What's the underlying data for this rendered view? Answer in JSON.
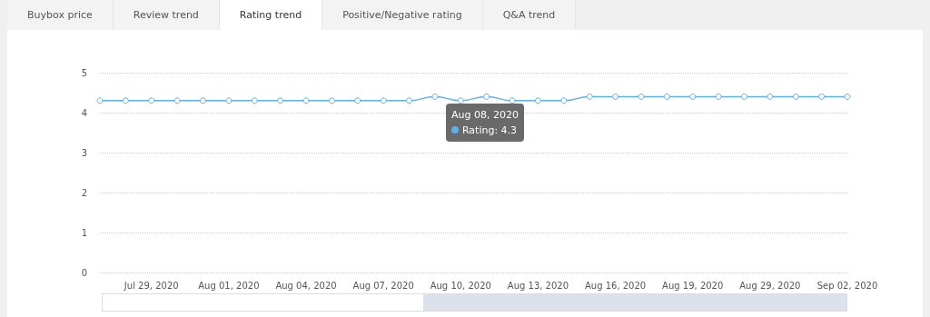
{
  "chart_data": {
    "type": "line",
    "categories": [
      null,
      null,
      "Jul 29, 2020",
      null,
      null,
      "Aug 01, 2020",
      null,
      null,
      "Aug 04, 2020",
      null,
      null,
      "Aug 07, 2020",
      null,
      null,
      "Aug 10, 2020",
      null,
      null,
      "Aug 13, 2020",
      null,
      null,
      "Aug 16, 2020",
      null,
      null,
      "Aug 19, 2020",
      null,
      null,
      "Aug 29, 2020",
      null,
      null,
      "Sep 02, 2020"
    ],
    "values": [
      4.3,
      4.3,
      4.3,
      4.3,
      4.3,
      4.3,
      4.3,
      4.3,
      4.3,
      4.3,
      4.3,
      4.3,
      4.3,
      4.4,
      4.3,
      4.4,
      4.3,
      4.3,
      4.3,
      4.4,
      4.4,
      4.4,
      4.4,
      4.4,
      4.4,
      4.4,
      4.4,
      4.4,
      4.4,
      4.4
    ],
    "color": "#5ab1ef",
    "ylim": [
      0,
      5
    ],
    "yticks": [
      0,
      1,
      2,
      3,
      4,
      5
    ],
    "grid": "y",
    "marker": "circle",
    "line_style": "solid",
    "annotations": [
      "Buybox price",
      "Review trend",
      "Rating trend",
      "Positive/Negative rating",
      "Q&A trend",
      "Aug 08, 2020",
      "Rating: 4.3"
    ]
  }
}
